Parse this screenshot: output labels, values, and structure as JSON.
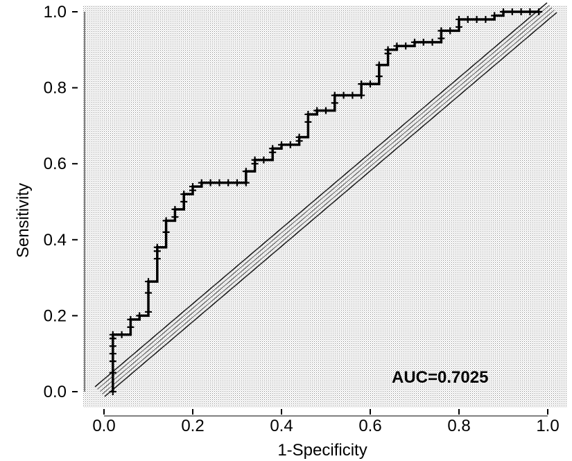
{
  "chart_data": {
    "type": "line",
    "title": "",
    "xlabel": "1-Specificity",
    "ylabel": "Sensitivity",
    "xlim": [
      0.0,
      1.0
    ],
    "ylim": [
      0.0,
      1.0
    ],
    "xticks": [
      "0.0",
      "0.2",
      "0.4",
      "0.6",
      "0.8",
      "1.0"
    ],
    "yticks": [
      "0.0",
      "0.2",
      "0.4",
      "0.6",
      "0.8",
      "1.0"
    ],
    "grid": false,
    "background": "stippled-gray",
    "annotation": "AUC=0.7025",
    "series": [
      {
        "marker": "plus",
        "color": "#000000",
        "x": [
          0.02,
          0.02,
          0.02,
          0.02,
          0.02,
          0.02,
          0.02,
          0.04,
          0.06,
          0.06,
          0.08,
          0.1,
          0.1,
          0.1,
          0.12,
          0.12,
          0.12,
          0.14,
          0.14,
          0.16,
          0.16,
          0.18,
          0.18,
          0.2,
          0.2,
          0.22,
          0.24,
          0.26,
          0.28,
          0.3,
          0.32,
          0.32,
          0.34,
          0.34,
          0.36,
          0.38,
          0.38,
          0.4,
          0.42,
          0.44,
          0.44,
          0.46,
          0.46,
          0.48,
          0.5,
          0.52,
          0.52,
          0.54,
          0.56,
          0.58,
          0.58,
          0.6,
          0.62,
          0.62,
          0.64,
          0.64,
          0.66,
          0.68,
          0.7,
          0.72,
          0.74,
          0.76,
          0.76,
          0.78,
          0.8,
          0.8,
          0.82,
          0.84,
          0.86,
          0.88,
          0.9,
          0.92,
          0.94,
          0.96,
          0.98
        ],
        "y": [
          0.0,
          0.05,
          0.08,
          0.1,
          0.12,
          0.14,
          0.15,
          0.15,
          0.17,
          0.19,
          0.2,
          0.21,
          0.26,
          0.29,
          0.35,
          0.37,
          0.38,
          0.42,
          0.45,
          0.46,
          0.48,
          0.5,
          0.52,
          0.53,
          0.54,
          0.55,
          0.55,
          0.55,
          0.55,
          0.55,
          0.55,
          0.58,
          0.6,
          0.61,
          0.61,
          0.63,
          0.64,
          0.65,
          0.65,
          0.66,
          0.67,
          0.71,
          0.73,
          0.74,
          0.74,
          0.76,
          0.78,
          0.78,
          0.78,
          0.78,
          0.81,
          0.81,
          0.83,
          0.86,
          0.89,
          0.9,
          0.91,
          0.91,
          0.92,
          0.92,
          0.92,
          0.93,
          0.95,
          0.95,
          0.96,
          0.98,
          0.98,
          0.98,
          0.98,
          0.99,
          1.0,
          1.0,
          1.0,
          1.0,
          1.0
        ]
      }
    ],
    "reference_line": {
      "from": [
        0.0,
        0.0
      ],
      "to": [
        1.0,
        1.0
      ],
      "style": "hatched-band"
    }
  }
}
